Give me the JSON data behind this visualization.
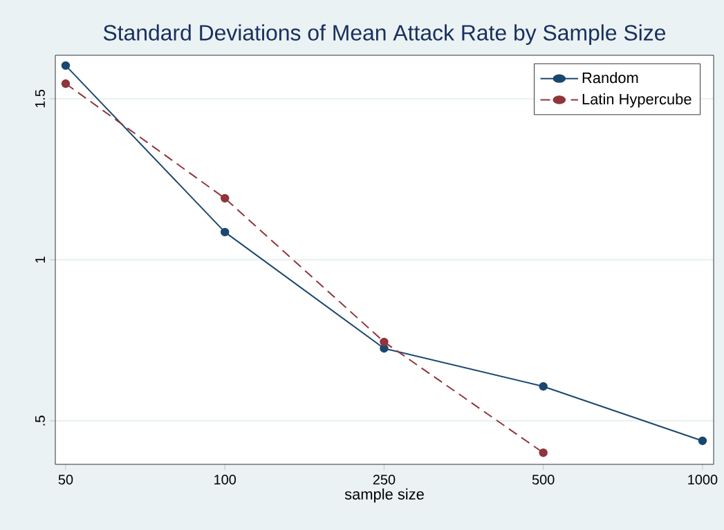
{
  "chart_data": {
    "type": "line",
    "title": "Standard Deviations of Mean Attack Rate by Sample Size",
    "xlabel": "sample size",
    "categories": [
      "50",
      "100",
      "250",
      "500",
      "1000"
    ],
    "series": [
      {
        "name": "Random",
        "color": "#1a476f",
        "line_style": "solid",
        "values": [
          1.603,
          1.086,
          0.725,
          0.607,
          0.438
        ]
      },
      {
        "name": "Latin Hypercube",
        "color": "#90353b",
        "line_style": "dashed",
        "values": [
          1.547,
          1.191,
          0.745,
          0.401,
          null
        ]
      }
    ],
    "ylim": [
      0.365,
      1.635
    ],
    "yticks": [
      {
        "value": 0.5,
        "label": ".5"
      },
      1,
      1.5
    ],
    "grid": "y",
    "legend": "top right",
    "marker": "circle"
  }
}
